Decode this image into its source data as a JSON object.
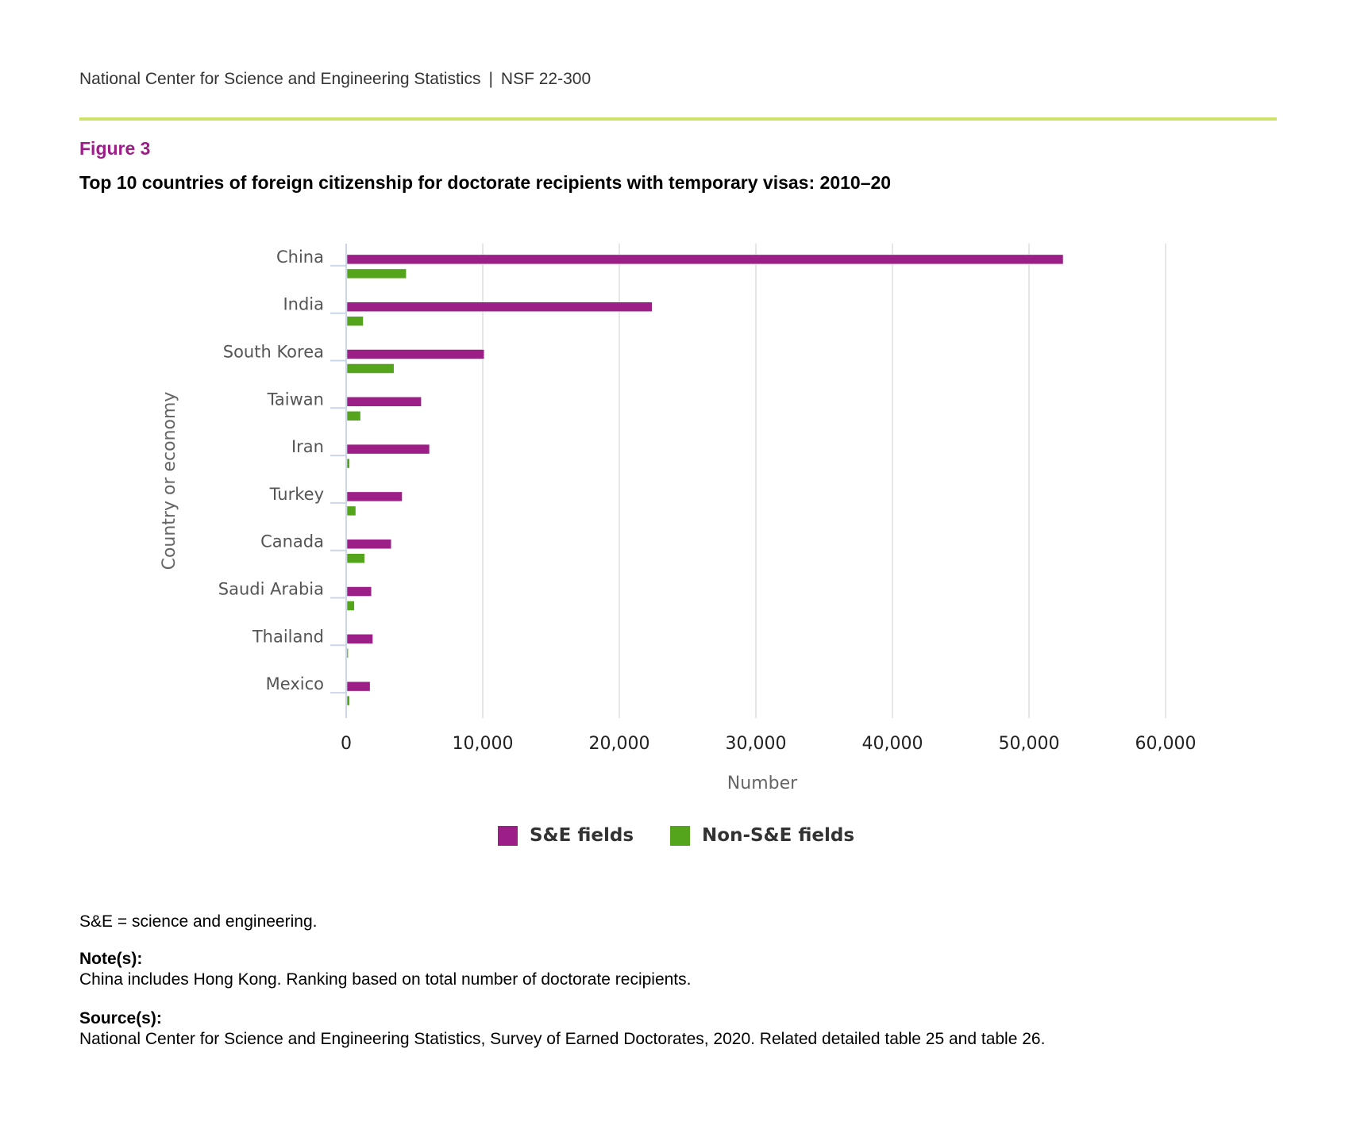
{
  "header": {
    "org": "National Center for Science and Engineering Statistics",
    "separator": "|",
    "report": "NSF 22-300"
  },
  "figure_label": "Figure 3",
  "figure_title": "Top 10 countries of foreign citizenship for doctorate recipients with temporary visas: 2010–20",
  "colors": {
    "se": "#9c1f88",
    "non_se": "#54a51b",
    "accent_rule": "#cde26a",
    "gridline": "#e6e6e6",
    "axis": "#ccd6eb"
  },
  "chart_data": {
    "type": "bar",
    "orientation": "horizontal",
    "title": "Top 10 countries of foreign citizenship for doctorate recipients with temporary visas: 2010–20",
    "xlabel": "Number",
    "ylabel": "Country or economy",
    "xlim": [
      0,
      60000
    ],
    "x_ticks": [
      0,
      10000,
      20000,
      30000,
      40000,
      50000,
      60000
    ],
    "x_tick_labels": [
      "0",
      "10,000",
      "20,000",
      "30,000",
      "40,000",
      "50,000",
      "60,000"
    ],
    "grid": true,
    "legend_position": "bottom",
    "categories": [
      "China",
      "India",
      "South Korea",
      "Taiwan",
      "Iran",
      "Turkey",
      "Canada",
      "Saudi Arabia",
      "Thailand",
      "Mexico"
    ],
    "series": [
      {
        "name": "S&E fields",
        "color": "#9c1f88",
        "values": [
          52500,
          22400,
          10100,
          5500,
          6100,
          4100,
          3300,
          1850,
          1950,
          1750
        ]
      },
      {
        "name": "Non-S&E fields",
        "color": "#54a51b",
        "values": [
          4400,
          1250,
          3500,
          1050,
          250,
          700,
          1350,
          600,
          150,
          250
        ]
      }
    ]
  },
  "footnotes": {
    "abbrev": "S&E = science and engineering.",
    "notes_label": "Note(s):",
    "notes_text": "China includes Hong Kong. Ranking based on total number of doctorate recipients.",
    "source_label": "Source(s):",
    "source_text": "National Center for Science and Engineering Statistics, Survey of Earned Doctorates, 2020. Related detailed table 25 and table 26."
  }
}
